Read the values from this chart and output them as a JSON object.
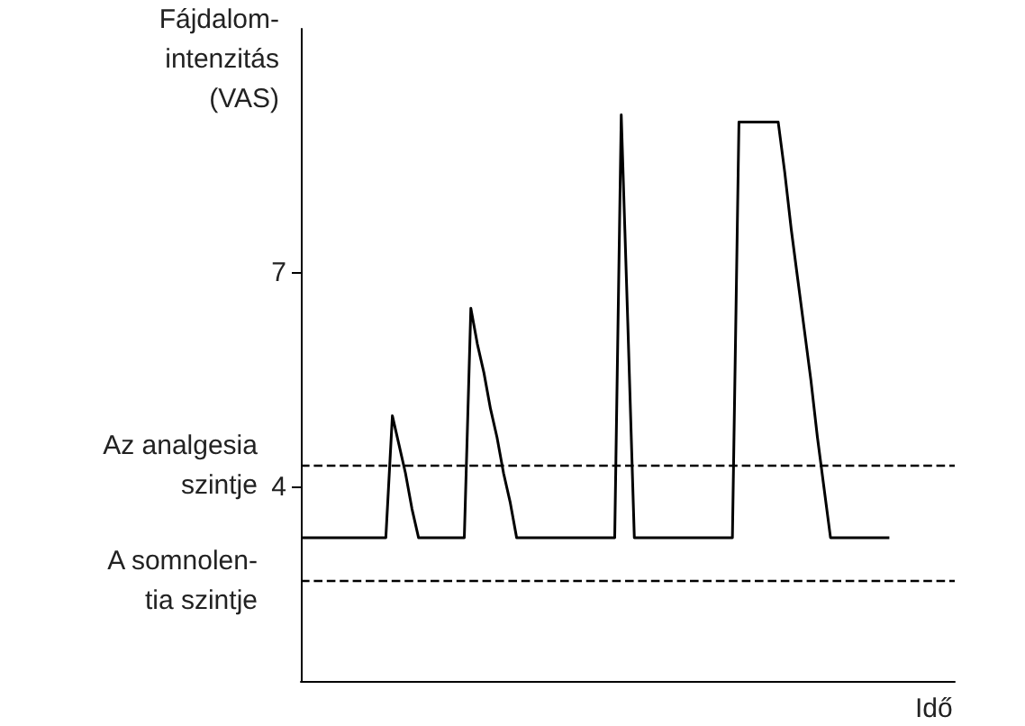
{
  "chart_data": {
    "type": "line",
    "ylabel": "Fájdalom-\nintenzitás\n(VAS)",
    "xlabel": "Idő",
    "categories": [
      null,
      null,
      null,
      null,
      null,
      null,
      null,
      null,
      null,
      null,
      null,
      null,
      null,
      null,
      null,
      null,
      null,
      null,
      null,
      null,
      null,
      null,
      null,
      null,
      null,
      null,
      null,
      null,
      null,
      null,
      null,
      null,
      null,
      null,
      null,
      null,
      null,
      null,
      null,
      null,
      null,
      null,
      null,
      null,
      null,
      null,
      null,
      null,
      null,
      null,
      null,
      null,
      null,
      null,
      null,
      null,
      null,
      null,
      null,
      null,
      null,
      null,
      null,
      null,
      null,
      null,
      null,
      null,
      null,
      null,
      null,
      null,
      null,
      null,
      null,
      null,
      null,
      null,
      null,
      null,
      null,
      null,
      null,
      null,
      null,
      null,
      null,
      null,
      null,
      null,
      null,
      null,
      null,
      null,
      null,
      null,
      null,
      null,
      null,
      null,
      null
    ],
    "values": [
      3.3,
      3.3,
      3.3,
      3.3,
      3.3,
      3.3,
      3.3,
      3.3,
      3.3,
      3.3,
      3.3,
      3.3,
      3.3,
      3.3,
      5,
      4.6,
      4.2,
      3.7,
      3.3,
      3.3,
      3.3,
      3.3,
      3.3,
      3.3,
      3.3,
      3.3,
      6.5,
      6.0,
      5.6,
      5.1,
      4.7,
      4.2,
      3.8,
      3.3,
      3.3,
      3.3,
      3.3,
      3.3,
      3.3,
      3.3,
      3.3,
      3.3,
      3.3,
      3.3,
      3.3,
      3.3,
      3.3,
      3.3,
      3.3,
      9.2,
      6.3,
      3.3,
      3.3,
      3.3,
      3.3,
      3.3,
      3.3,
      3.3,
      3.3,
      3.3,
      3.3,
      3.3,
      3.3,
      3.3,
      3.3,
      3.3,
      3.3,
      9.1,
      9.1,
      9.1,
      9.1,
      9.1,
      9.1,
      9.1,
      8.4,
      7.6,
      6.9,
      6.2,
      5.5,
      4.7,
      4.0,
      3.3,
      3.3,
      3.3,
      3.3,
      3.3,
      3.3,
      3.3,
      3.3,
      3.3,
      3.3,
      null,
      null,
      null,
      null,
      null,
      null,
      null,
      null,
      null,
      null
    ],
    "color": "#000000",
    "line_style": "solid",
    "ylim": [
      1.3,
      10.4
    ],
    "yticks": [
      4,
      7
    ],
    "tick_labels": "y",
    "ref_lines": [
      {
        "axis": "y",
        "value": 4.3,
        "label": "Az analgesia\nszintje",
        "line_style": "dashed",
        "color": "#000000"
      },
      {
        "axis": "y",
        "value": 2.7,
        "label": "A somnolen-\ntia szintje",
        "line_style": "dashed",
        "color": "#000000"
      }
    ]
  }
}
